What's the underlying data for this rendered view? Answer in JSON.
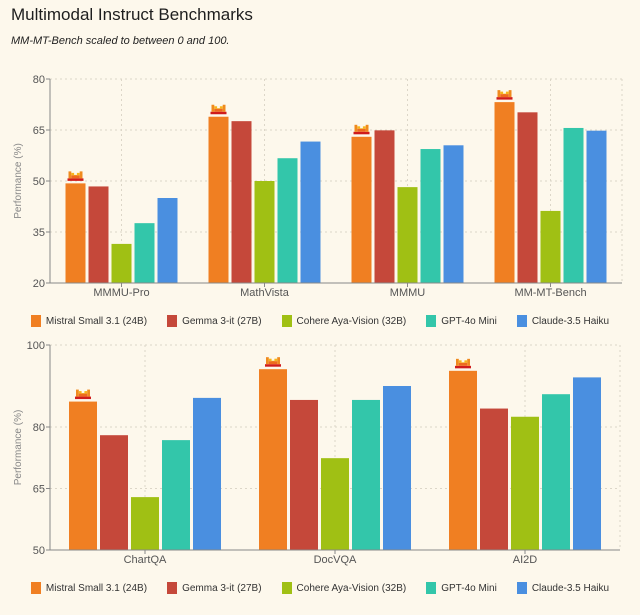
{
  "header": {
    "title": "Multimodal Instruct Benchmarks",
    "subtitle": "MM-MT-Bench scaled to between 0 and 100."
  },
  "legend": [
    {
      "name": "Mistral Small 3.1 (24B)",
      "color": "#f07f22"
    },
    {
      "name": "Gemma 3-it (27B)",
      "color": "#c5483a"
    },
    {
      "name": "Cohere Aya-Vision (32B)",
      "color": "#a0c014"
    },
    {
      "name": "GPT-4o Mini",
      "color": "#33c6aa"
    },
    {
      "name": "Claude-3.5 Haiku",
      "color": "#4a8fe0"
    }
  ],
  "chart_data": [
    {
      "type": "bar",
      "title": "",
      "xlabel": "",
      "ylabel": "Performance (%)",
      "ylim": [
        20,
        80
      ],
      "yticks": [
        20,
        35,
        50,
        65,
        80
      ],
      "grid": true,
      "legend_position": "bottom",
      "categories": [
        "MMMU-Pro",
        "MathVista",
        "MMMU",
        "MM-MT-Bench"
      ],
      "highlight_series": "Mistral Small 3.1 (24B)",
      "series": [
        {
          "name": "Mistral Small 3.1 (24B)",
          "values": [
            49.3,
            68.9,
            63.0,
            73.2
          ]
        },
        {
          "name": "Gemma 3-it (27B)",
          "values": [
            48.4,
            67.6,
            64.9,
            70.2
          ]
        },
        {
          "name": "Cohere Aya-Vision (32B)",
          "values": [
            31.5,
            50.0,
            48.2,
            41.2
          ]
        },
        {
          "name": "GPT-4o Mini",
          "values": [
            37.6,
            56.7,
            59.4,
            65.6
          ]
        },
        {
          "name": "Claude-3.5 Haiku",
          "values": [
            45.0,
            61.6,
            60.5,
            64.8
          ]
        }
      ]
    },
    {
      "type": "bar",
      "title": "",
      "xlabel": "",
      "ylabel": "Performance (%)",
      "ylim": [
        50,
        100
      ],
      "yticks": [
        50,
        65,
        80,
        100
      ],
      "grid": true,
      "legend_position": "bottom",
      "categories": [
        "ChartQA",
        "DocVQA",
        "AI2D"
      ],
      "highlight_series": "Mistral Small 3.1 (24B)",
      "series": [
        {
          "name": "Mistral Small 3.1 (24B)",
          "values": [
            86.2,
            94.1,
            93.7
          ]
        },
        {
          "name": "Gemma 3-it (27B)",
          "values": [
            78.0,
            86.6,
            84.5
          ]
        },
        {
          "name": "Cohere Aya-Vision (32B)",
          "values": [
            62.9,
            72.4,
            82.5
          ]
        },
        {
          "name": "GPT-4o Mini",
          "values": [
            76.8,
            86.6,
            88.0
          ]
        },
        {
          "name": "Claude-3.5 Haiku",
          "values": [
            87.1,
            90.0,
            92.1
          ]
        }
      ]
    }
  ]
}
